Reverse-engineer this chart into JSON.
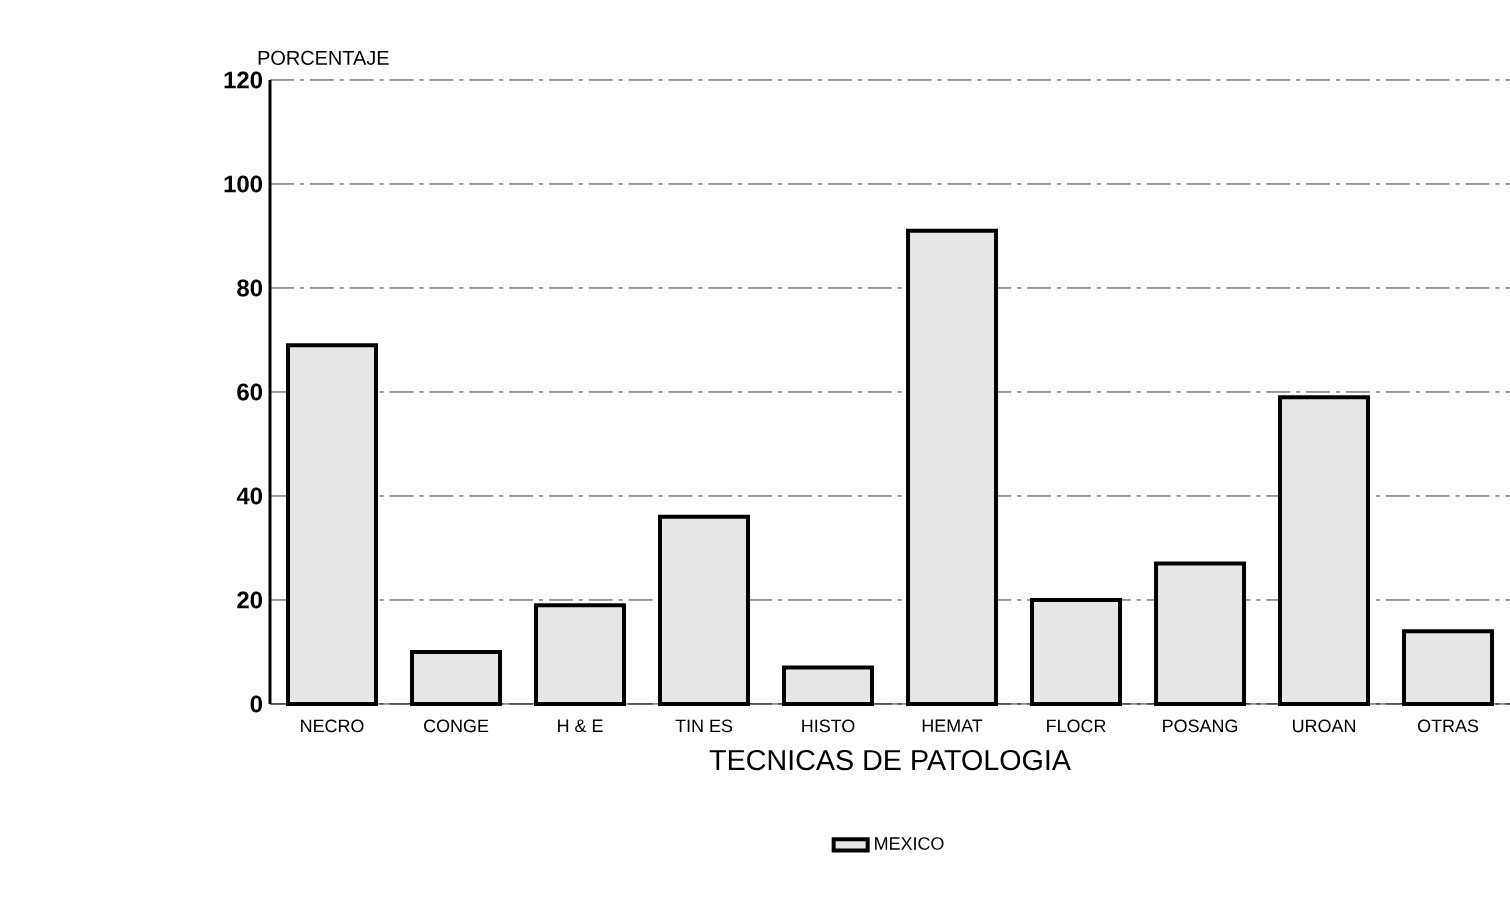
{
  "chart_data": {
    "type": "bar",
    "ylabel": "PORCENTAJE",
    "xlabel": "TECNICAS DE PATOLOGIA",
    "categories": [
      "NECRO",
      "CONGE",
      "H & E",
      "TIN ES",
      "HISTO",
      "HEMAT",
      "FLOCR",
      "POSANG",
      "UROAN",
      "OTRAS"
    ],
    "series": [
      {
        "name": "MEXICO",
        "color": "#e6e6e6",
        "values": [
          69,
          10,
          19,
          36,
          7,
          91,
          20,
          27,
          59,
          14
        ]
      }
    ],
    "ylim": [
      0,
      120
    ],
    "yticks": [
      0,
      20,
      40,
      60,
      80,
      100,
      120
    ],
    "grid": "y",
    "legend": "bottom"
  }
}
